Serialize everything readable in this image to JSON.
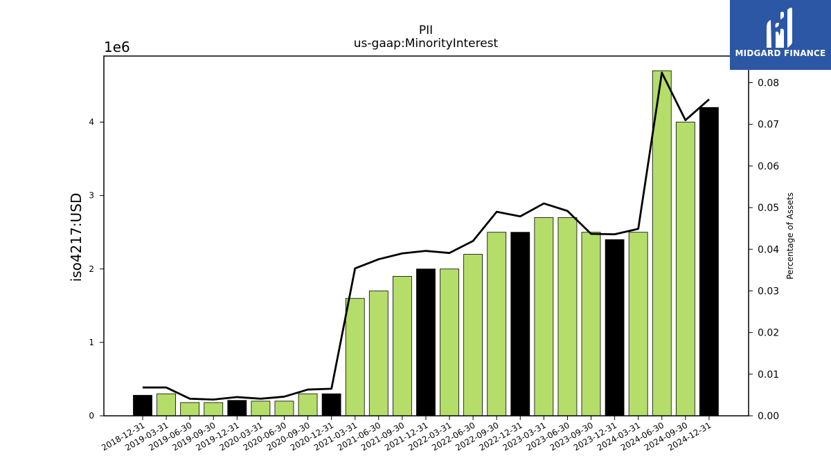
{
  "brand": {
    "name": "MIDGARD FINANCE",
    "logo_icon": "midgard-logo-icon",
    "color": "#2b57a5"
  },
  "chart_data": {
    "type": "bar",
    "title": "PII",
    "subtitle": "us-gaap:MinorityInterest",
    "ylabel": "iso4217:USD",
    "y_offset_label": "1e6",
    "y2label": "Percentage of Assets",
    "ylim": [
      0,
      4900000
    ],
    "y2lim": [
      0,
      0.0864
    ],
    "yticks": [
      0,
      1,
      2,
      3,
      4
    ],
    "y2ticks": [
      "0.00",
      "0.01",
      "0.02",
      "0.03",
      "0.04",
      "0.05",
      "0.06",
      "0.07",
      "0.08"
    ],
    "categories": [
      "2018-12-31",
      "2019-03-31",
      "2019-06-30",
      "2019-09-30",
      "2019-12-31",
      "2020-03-31",
      "2020-06-30",
      "2020-09-30",
      "2020-12-31",
      "2021-03-31",
      "2021-06-30",
      "2021-09-30",
      "2021-12-31",
      "2022-03-31",
      "2022-06-30",
      "2022-09-30",
      "2022-12-31",
      "2023-03-31",
      "2023-06-30",
      "2023-09-30",
      "2023-12-31",
      "2024-03-31",
      "2024-06-30",
      "2024-09-30",
      "2024-12-31"
    ],
    "series": [
      {
        "type": "bar",
        "values": [
          280000,
          300000,
          180000,
          180000,
          210000,
          200000,
          200000,
          300000,
          300000,
          1600000,
          1700000,
          1900000,
          2000000,
          2000000,
          2200000,
          2500000,
          2500000,
          2700000,
          2700000,
          2500000,
          2400000,
          2500000,
          4700000,
          4000000,
          4200000
        ]
      },
      {
        "type": "line",
        "axis": "right",
        "values": [
          0.0068,
          0.0068,
          0.0041,
          0.0039,
          0.0045,
          0.0041,
          0.0046,
          0.0063,
          0.0065,
          0.0354,
          0.0376,
          0.039,
          0.0396,
          0.0391,
          0.042,
          0.049,
          0.0479,
          0.051,
          0.0492,
          0.0437,
          0.0436,
          0.0449,
          0.0824,
          0.071,
          0.076
        ]
      }
    ],
    "bar_colors": [
      "#000000",
      "#b5dd6a",
      "#b5dd6a",
      "#b5dd6a",
      "#000000",
      "#b5dd6a",
      "#b5dd6a",
      "#b5dd6a",
      "#000000",
      "#b5dd6a",
      "#b5dd6a",
      "#b5dd6a",
      "#000000",
      "#b5dd6a",
      "#b5dd6a",
      "#b5dd6a",
      "#000000",
      "#b5dd6a",
      "#b5dd6a",
      "#b5dd6a",
      "#000000",
      "#b5dd6a",
      "#b5dd6a",
      "#b5dd6a",
      "#000000"
    ],
    "line_color": "#000000",
    "grid": false,
    "legend": "none"
  }
}
